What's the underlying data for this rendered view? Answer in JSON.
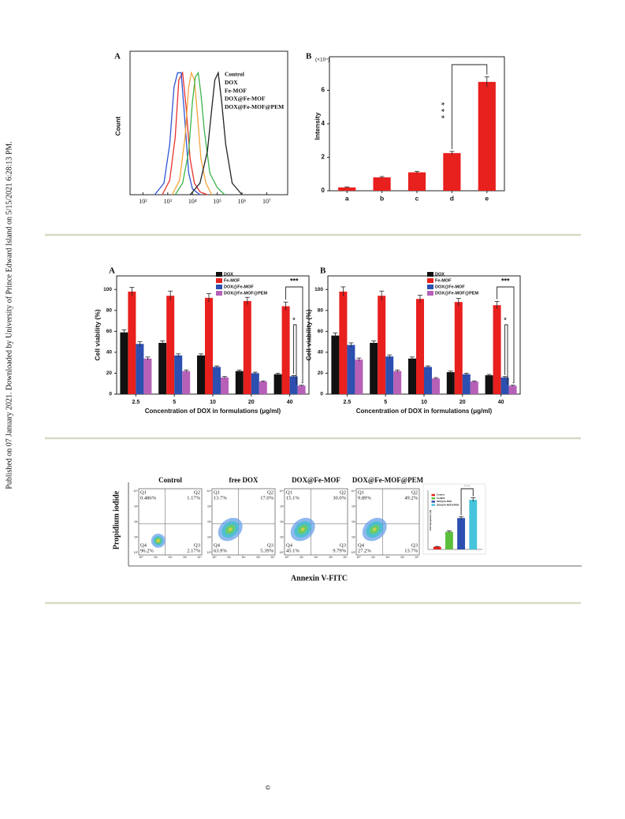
{
  "sidebar": "Published on 07 January 2021. Downloaded by University of Prince Edward Island on 5/15/2021 6:28:13 PM.",
  "footer": "©",
  "chart_data": [
    {
      "type": "line",
      "panel": "A",
      "y_label": "Count",
      "x_log": true,
      "xlim": [
        30,
        70000000
      ],
      "ylim": [
        0,
        100
      ],
      "xticks": [
        {
          "value": 100,
          "label": "10²"
        },
        {
          "value": 1000,
          "label": "10³"
        },
        {
          "value": 10000,
          "label": "10⁴"
        },
        {
          "value": 100000,
          "label": "10⁵"
        },
        {
          "value": 1000000,
          "label": "10⁶"
        },
        {
          "value": 10000000,
          "label": "10⁷"
        }
      ],
      "series": [
        {
          "name": "Control",
          "color": "#e8302c",
          "x": [
            600,
            1200,
            2000,
            2800,
            4000,
            5600,
            8000,
            12000,
            20000,
            40000
          ],
          "values": [
            0,
            10,
            40,
            80,
            85,
            60,
            25,
            8,
            2,
            0
          ]
        },
        {
          "name": "DOX",
          "color": "#2f55d4",
          "x": [
            300,
            700,
            1200,
            1800,
            2500,
            3500,
            5000,
            7000,
            10000,
            20000
          ],
          "values": [
            0,
            8,
            35,
            75,
            85,
            85,
            50,
            15,
            4,
            0
          ]
        },
        {
          "name": "Fe-MOF",
          "color": "#f5a33a",
          "x": [
            1500,
            3000,
            5000,
            7000,
            9000,
            12000,
            16000,
            22000,
            35000,
            60000
          ],
          "values": [
            0,
            10,
            40,
            75,
            85,
            80,
            55,
            25,
            8,
            0
          ]
        },
        {
          "name": "DOX@Fe-MOF",
          "color": "#3cb44a",
          "x": [
            2000,
            4000,
            7000,
            10000,
            13000,
            17000,
            22000,
            30000,
            50000,
            100000,
            200000
          ],
          "values": [
            0,
            8,
            30,
            65,
            82,
            85,
            70,
            45,
            15,
            5,
            0
          ]
        },
        {
          "name": "DOX@Fe-MOF@PEM",
          "color": "#222222",
          "x": [
            8000,
            20000,
            40000,
            60000,
            80000,
            110000,
            150000,
            220000,
            400000,
            1000000
          ],
          "values": [
            0,
            8,
            30,
            60,
            80,
            85,
            65,
            35,
            8,
            0
          ]
        }
      ]
    },
    {
      "type": "bar",
      "panel": "B",
      "y_label": "Intensity",
      "y_multiplier": "(×10⁴)",
      "categories": [
        "a",
        "b",
        "c",
        "d",
        "e"
      ],
      "ylim": [
        0,
        8
      ],
      "yticks": [
        0,
        2,
        4,
        6
      ],
      "series": [
        {
          "color": "#e8201e",
          "values": [
            0.2,
            0.8,
            1.1,
            2.25,
            6.5
          ],
          "errors": [
            0.03,
            0.05,
            0.06,
            0.1,
            0.3
          ]
        }
      ],
      "annotations": [
        "***"
      ]
    },
    {
      "type": "bar",
      "panel": "A",
      "y_label": "Cell viability (%)",
      "x_label": "Concentration of DOX in formulations (μg/ml)",
      "categories": [
        "2.5",
        "5",
        "10",
        "20",
        "40"
      ],
      "ylim": [
        0,
        113
      ],
      "yticks": [
        0,
        20,
        40,
        60,
        80,
        100
      ],
      "series": [
        {
          "name": "DOX",
          "color": "#111111",
          "values": [
            59,
            49,
            37,
            22,
            19
          ],
          "errors": [
            2.5,
            2,
            1.5,
            1,
            1
          ]
        },
        {
          "name": "Fe-MOF",
          "color": "#e8201e",
          "values": [
            98,
            94,
            92,
            89,
            84
          ],
          "errors": [
            4,
            4.5,
            4,
            3.5,
            4
          ]
        },
        {
          "name": "DOX@Fe-MOF",
          "color": "#2c4fb0",
          "values": [
            48,
            37,
            26,
            20,
            17
          ],
          "errors": [
            2,
            1.5,
            1,
            1,
            0.8
          ]
        },
        {
          "name": "DOX@Fe-MOF@PEM",
          "color": "#b660b8",
          "values": [
            34,
            22,
            16,
            12,
            8
          ],
          "errors": [
            1.5,
            1,
            0.8,
            0.6,
            0.5
          ]
        }
      ],
      "annotations": [
        "***",
        "*"
      ]
    },
    {
      "type": "bar",
      "panel": "B",
      "y_label": "Cell viability (%)",
      "x_label": "Concentration of DOX in formulations (μg/ml)",
      "categories": [
        "2.5",
        "5",
        "10",
        "20",
        "40"
      ],
      "ylim": [
        0,
        113
      ],
      "yticks": [
        0,
        20,
        40,
        60,
        80,
        100
      ],
      "series": [
        {
          "name": "DOX",
          "color": "#111111",
          "values": [
            56,
            49,
            34,
            21,
            18
          ],
          "errors": [
            2.5,
            2,
            1.5,
            1,
            0.8
          ]
        },
        {
          "name": "Fe-MOF",
          "color": "#e8201e",
          "values": [
            98,
            94,
            91,
            88,
            85
          ],
          "errors": [
            4.5,
            4.5,
            3.5,
            3.5,
            3.5
          ]
        },
        {
          "name": "DOX@Fe-MOF",
          "color": "#2c4fb0",
          "values": [
            47,
            36,
            26,
            19,
            16
          ],
          "errors": [
            2,
            1.5,
            1,
            1,
            0.8
          ]
        },
        {
          "name": "DOX@Fe-MOF@PEM",
          "color": "#b660b8",
          "values": [
            33,
            22,
            15,
            12,
            8
          ],
          "errors": [
            1.5,
            1,
            0.8,
            0.6,
            0.5
          ]
        }
      ],
      "annotations": [
        "***",
        "*"
      ]
    },
    {
      "type": "bar",
      "y_label": "Cell Apoptosis (%)",
      "ylim": [
        0,
        75
      ],
      "series": [
        {
          "name": "Control",
          "color": "#e8201e",
          "values": [
            3.3
          ],
          "errors": [
            0.5
          ]
        },
        {
          "name": "Fe-MOF",
          "color": "#5bbf3c",
          "values": [
            22.4
          ],
          "errors": [
            1
          ]
        },
        {
          "name": "DOX@Fe-MOF",
          "color": "#2c4fb0",
          "values": [
            39.8
          ],
          "errors": [
            1.5
          ]
        },
        {
          "name": "DOX@Fe-MOF@PEM",
          "color": "#45c4dc",
          "values": [
            62.9
          ],
          "errors": [
            2.5
          ]
        }
      ],
      "annotations": [
        "* * *"
      ]
    }
  ],
  "flow_panel": {
    "y_label": "Propidium iodide",
    "x_label": "Annexin V-FITC",
    "axis_ticks": [
      "10⁰",
      "10¹",
      "10²",
      "10³",
      "10⁴"
    ],
    "plots": [
      {
        "title": "Control",
        "quadrants": [
          [
            "Q1",
            "0.486%"
          ],
          [
            "Q2",
            "1.17%"
          ],
          [
            "Q4",
            "96.2%"
          ],
          [
            "Q3",
            "2.17%"
          ]
        ]
      },
      {
        "title": "free DOX",
        "quadrants": [
          [
            "Q1",
            "13.7%"
          ],
          [
            "Q2",
            "17.0%"
          ],
          [
            "Q4",
            "63.9%"
          ],
          [
            "Q3",
            "5.39%"
          ]
        ]
      },
      {
        "title": "DOX@Fe-MOF",
        "quadrants": [
          [
            "Q1",
            "15.1%"
          ],
          [
            "Q2",
            "30.0%"
          ],
          [
            "Q4",
            "45.1%"
          ],
          [
            "Q3",
            "9.79%"
          ]
        ]
      },
      {
        "title": "DOX@Fe-MOF@PEM",
        "quadrants": [
          [
            "Q1",
            "9.89%"
          ],
          [
            "Q2",
            "49.2%"
          ],
          [
            "Q4",
            "27.2%"
          ],
          [
            "Q3",
            "13.7%"
          ]
        ]
      }
    ]
  }
}
